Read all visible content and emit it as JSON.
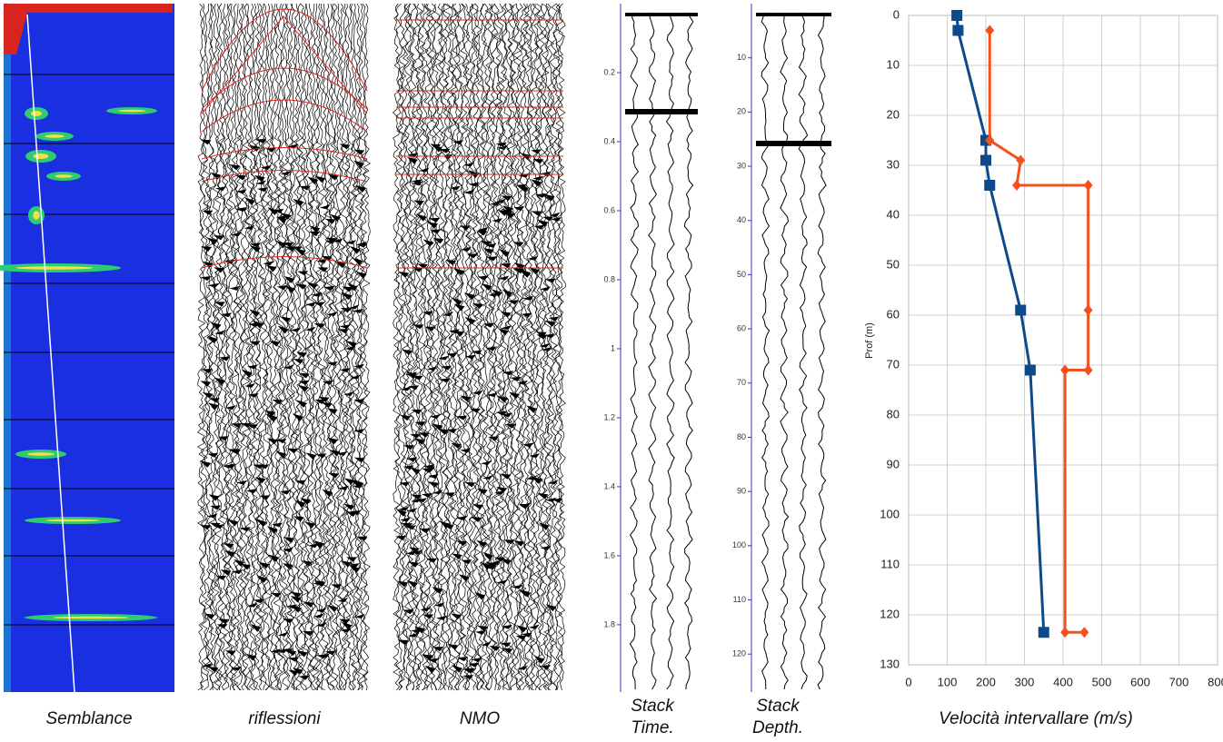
{
  "panels": [
    {
      "caption": "Semblance"
    },
    {
      "caption": "riflessioni"
    },
    {
      "caption": "NMO"
    },
    {
      "caption": [
        "Stack",
        "Time."
      ],
      "ylim": [
        0,
        1.995
      ],
      "yticks": [
        0.2,
        0.4,
        0.6,
        0.8,
        1,
        1.2,
        1.4,
        1.6,
        1.8
      ]
    },
    {
      "caption": [
        "Stack",
        "Depth."
      ],
      "ylim": [
        0,
        127
      ],
      "yticks": [
        10,
        20,
        30,
        40,
        50,
        60,
        70,
        80,
        90,
        100,
        110,
        120
      ]
    }
  ],
  "chart_data": {
    "type": "line",
    "x_label": "Velocità intervallare (m/s)",
    "y_label": "Prof (m)",
    "xlim": [
      0,
      800
    ],
    "xticks": [
      0,
      100,
      200,
      300,
      400,
      500,
      600,
      700,
      800
    ],
    "ylim": [
      0,
      130
    ],
    "yticks": [
      0,
      10,
      20,
      30,
      40,
      50,
      60,
      70,
      80,
      90,
      100,
      110,
      120,
      130
    ],
    "y_inverted": true,
    "grid": true,
    "series": [
      {
        "color": "#0d4a8a",
        "marker": "square",
        "x": [
          125,
          128,
          200,
          200,
          210,
          290,
          315,
          350
        ],
        "values": [
          0,
          3,
          25,
          29,
          34,
          59,
          71,
          123.5
        ]
      },
      {
        "color": "#f4511e",
        "marker": "diamond",
        "x": [
          210,
          210,
          290,
          280,
          465,
          465,
          465,
          405,
          405,
          455
        ],
        "values": [
          3,
          25,
          29,
          34,
          34,
          59,
          71,
          71,
          123.5,
          123.5
        ]
      }
    ]
  }
}
